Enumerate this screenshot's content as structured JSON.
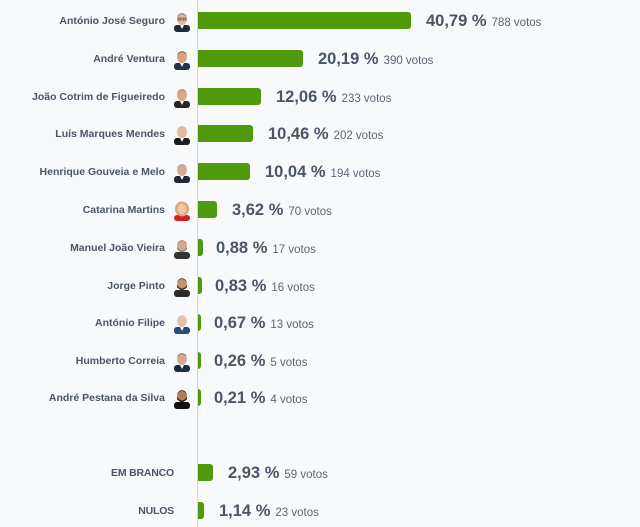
{
  "chart_data": {
    "type": "bar",
    "orientation": "horizontal",
    "title": "",
    "xlabel": "",
    "ylabel": "",
    "grid": false,
    "legend": null,
    "bar_color": "#4f9a0a",
    "categories": [
      "António José Seguro",
      "André Ventura",
      "João Cotrim de Figueiredo",
      "Luís Marques Mendes",
      "Henrique Gouveia e Melo",
      "Catarina Martins",
      "Manuel João Vieira",
      "Jorge Pinto",
      "António Filipe",
      "Humberto Correia",
      "André Pestana da Silva",
      "EM BRANCO",
      "NULOS"
    ],
    "series": [
      {
        "name": "percent",
        "values": [
          40.79,
          20.19,
          12.06,
          10.46,
          10.04,
          3.62,
          0.88,
          0.83,
          0.67,
          0.26,
          0.21,
          2.93,
          1.14
        ]
      },
      {
        "name": "votos",
        "values": [
          788,
          390,
          233,
          202,
          194,
          70,
          17,
          16,
          13,
          5,
          4,
          59,
          23
        ]
      }
    ]
  },
  "candidates": [
    {
      "name": "António José Seguro",
      "pct": 40.79,
      "pct_label": "40,79 %",
      "votes_label": "788 votos",
      "avatar": "avatar-man-glasses"
    },
    {
      "name": "André Ventura",
      "pct": 20.19,
      "pct_label": "20,19 %",
      "votes_label": "390 votos",
      "avatar": "avatar-man"
    },
    {
      "name": "João Cotrim de Figueiredo",
      "pct": 12.06,
      "pct_label": "12,06 %",
      "votes_label": "233 votos",
      "avatar": "avatar-man"
    },
    {
      "name": "Luís Marques Mendes",
      "pct": 10.46,
      "pct_label": "10,46 %",
      "votes_label": "202 votos",
      "avatar": "avatar-man"
    },
    {
      "name": "Henrique Gouveia e Melo",
      "pct": 10.04,
      "pct_label": "10,04 %",
      "votes_label": "194 votos",
      "avatar": "avatar-man"
    },
    {
      "name": "Catarina Martins",
      "pct": 3.62,
      "pct_label": "3,62 %",
      "votes_label": "70 votos",
      "avatar": "avatar-woman"
    },
    {
      "name": "Manuel João Vieira",
      "pct": 0.88,
      "pct_label": "0,88 %",
      "votes_label": "17 votos",
      "avatar": "avatar-man-beard"
    },
    {
      "name": "Jorge Pinto",
      "pct": 0.83,
      "pct_label": "0,83 %",
      "votes_label": "16 votos",
      "avatar": "avatar-man-beard"
    },
    {
      "name": "António Filipe",
      "pct": 0.67,
      "pct_label": "0,67 %",
      "votes_label": "13 votos",
      "avatar": "avatar-man"
    },
    {
      "name": "Humberto Correia",
      "pct": 0.26,
      "pct_label": "0,26 %",
      "votes_label": "5 votos",
      "avatar": "avatar-man"
    },
    {
      "name": "André Pestana da Silva",
      "pct": 0.21,
      "pct_label": "0,21 %",
      "votes_label": "4 votos",
      "avatar": "avatar-man-beard"
    }
  ],
  "others": [
    {
      "name": "EM BRANCO",
      "pct": 2.93,
      "pct_label": "2,93 %",
      "votes_label": "59 votos"
    },
    {
      "name": "NULOS",
      "pct": 1.14,
      "pct_label": "1,14 %",
      "votes_label": "23 votos"
    }
  ]
}
